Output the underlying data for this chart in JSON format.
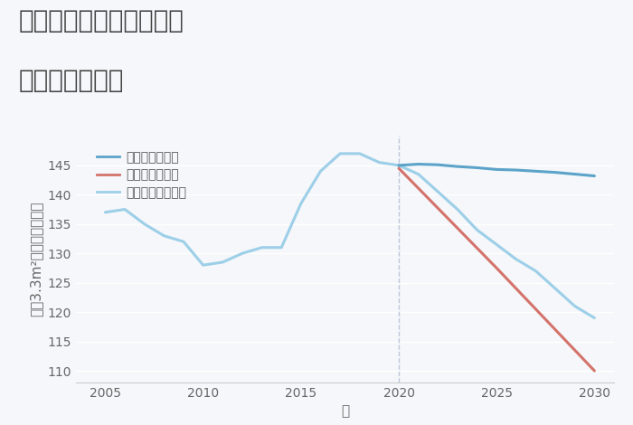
{
  "title_line1": "兵庫県西宮市西波止町の",
  "title_line2": "土地の価格推移",
  "xlabel": "年",
  "ylabel": "坪（3.3m²）単価（万円）",
  "background_color": "#f5f7fa",
  "plot_bg_color": "#f5f7fa",
  "good_scenario": {
    "label": "グッドシナリオ",
    "color": "#5ba3c9",
    "years": [
      2020,
      2021,
      2022,
      2023,
      2024,
      2025,
      2026,
      2027,
      2028,
      2029,
      2030
    ],
    "values": [
      145,
      145.2,
      145.1,
      144.8,
      144.6,
      144.3,
      144.2,
      144.0,
      143.8,
      143.5,
      143.2
    ]
  },
  "bad_scenario": {
    "label": "バッドシナリオ",
    "color": "#d4736b",
    "years": [
      2020,
      2025,
      2030
    ],
    "values": [
      144.5,
      127.5,
      110
    ]
  },
  "normal_scenario": {
    "label": "ノーマルシナリオ",
    "color": "#9dcfe8",
    "years": [
      2005,
      2006,
      2007,
      2008,
      2009,
      2010,
      2011,
      2012,
      2013,
      2014,
      2015,
      2016,
      2017,
      2018,
      2019,
      2020,
      2021,
      2022,
      2023,
      2024,
      2025,
      2026,
      2027,
      2028,
      2029,
      2030
    ],
    "values": [
      137,
      137.5,
      135,
      133,
      132,
      128,
      128.5,
      130,
      131,
      131,
      138.5,
      144,
      147,
      147,
      145.5,
      145,
      143.5,
      140.5,
      137.5,
      134,
      131.5,
      129,
      127,
      124,
      121,
      119
    ]
  },
  "ylim": [
    108,
    150
  ],
  "yticks": [
    110,
    115,
    120,
    125,
    130,
    135,
    140,
    145
  ],
  "xticks": [
    2005,
    2010,
    2015,
    2020,
    2025,
    2030
  ],
  "vline_x": 2020,
  "title_fontsize": 20,
  "axis_fontsize": 11,
  "tick_fontsize": 10,
  "legend_fontsize": 10,
  "line_width": 2.2
}
